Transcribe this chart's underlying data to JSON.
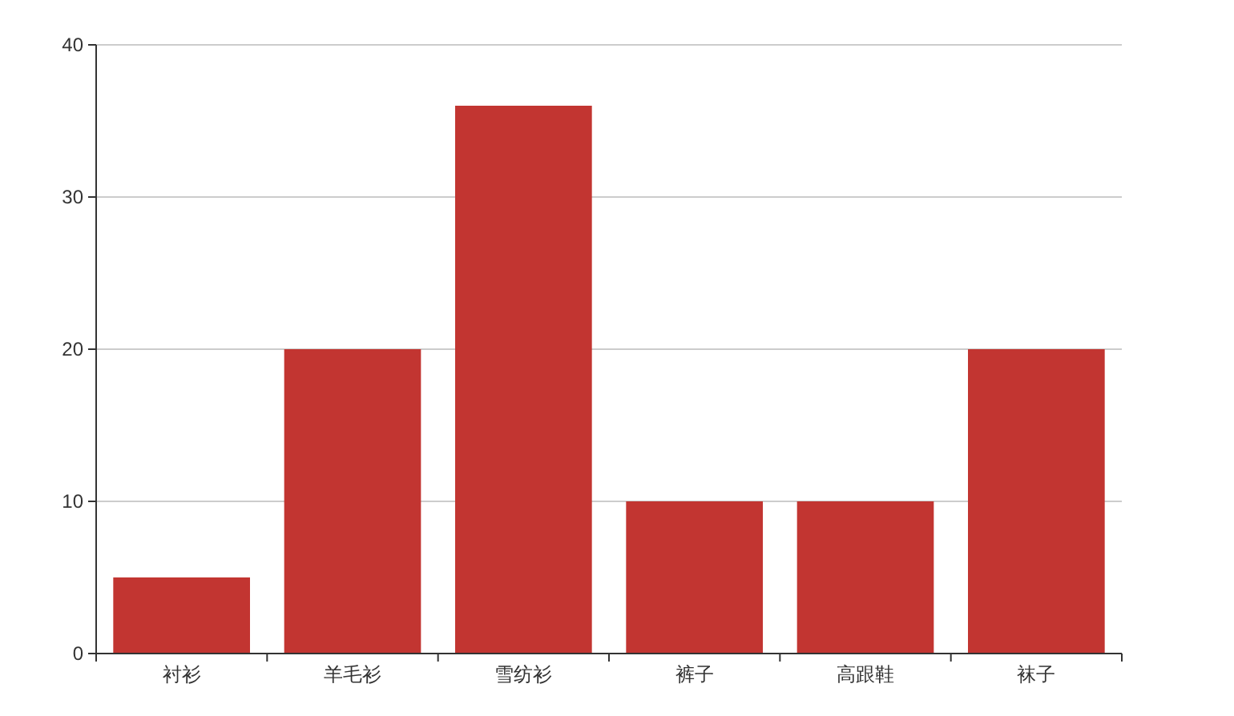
{
  "chart_data": {
    "type": "bar",
    "categories": [
      "衬衫",
      "羊毛衫",
      "雪纺衫",
      "裤子",
      "高跟鞋",
      "袜子"
    ],
    "values": [
      5,
      20,
      36,
      10,
      10,
      20
    ],
    "color": "#c23531",
    "ylim": [
      0,
      40
    ],
    "yticks": [
      0,
      10,
      20,
      30,
      40
    ],
    "grid": "y"
  }
}
